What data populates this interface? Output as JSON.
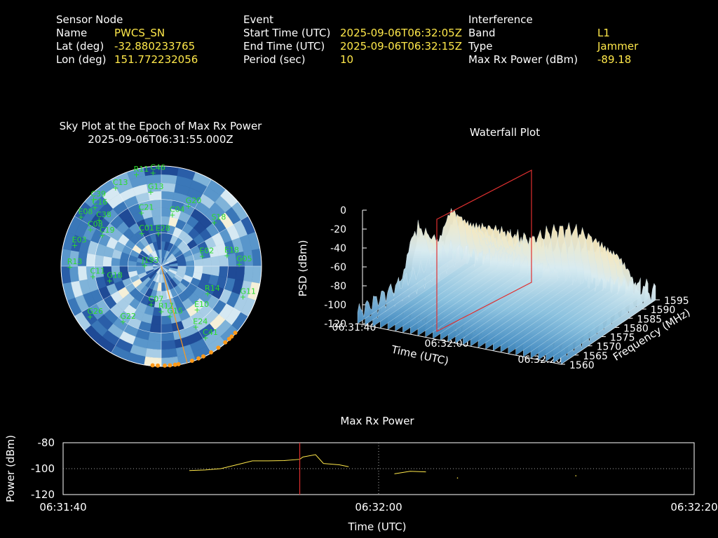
{
  "header": {
    "sensor": {
      "heading": "Sensor Node",
      "rows": [
        {
          "label": "Name",
          "value": "PWCS_SN"
        },
        {
          "label": "Lat (deg)",
          "value": "-32.880233765"
        },
        {
          "label": "Lon (deg)",
          "value": "151.772232056"
        }
      ]
    },
    "event": {
      "heading": "Event",
      "rows": [
        {
          "label": "Start Time (UTC)",
          "value": "2025-09-06T06:32:05Z"
        },
        {
          "label": "End Time (UTC)",
          "value": "2025-09-06T06:32:15Z"
        },
        {
          "label": "Period (sec)",
          "value": "10"
        }
      ]
    },
    "interference": {
      "heading": "Interference",
      "rows": [
        {
          "label": "Band",
          "value": "L1"
        },
        {
          "label": "Type",
          "value": "Jammer"
        },
        {
          "label": "Max Rx Power (dBm)",
          "value": "-89.18"
        }
      ]
    }
  },
  "chart_data": [
    {
      "type": "scatter",
      "name": "sky-plot",
      "title": "Sky Plot at the Epoch of Max Rx Power",
      "subtitle": "2025-09-06T06:31:55.000Z",
      "colors": {
        "satellite": "#2bdc2b",
        "jammer": "#ff9a1a"
      },
      "satellites": [
        {
          "id": "C46",
          "az": 355,
          "el": 5
        },
        {
          "id": "R11",
          "az": 345,
          "el": 4
        },
        {
          "id": "C13",
          "az": 330,
          "el": 8
        },
        {
          "id": "C39",
          "az": 315,
          "el": 4
        },
        {
          "id": "C16",
          "az": 312,
          "el": 10
        },
        {
          "id": "E08",
          "az": 302,
          "el": 5
        },
        {
          "id": "C38",
          "az": 307,
          "el": 20
        },
        {
          "id": "C08",
          "az": 298,
          "el": 18
        },
        {
          "id": "G13",
          "az": 352,
          "el": 22
        },
        {
          "id": "G20",
          "az": 24,
          "el": 30
        },
        {
          "id": "C21",
          "az": 340,
          "el": 38
        },
        {
          "id": "C04",
          "az": 12,
          "el": 42
        },
        {
          "id": "S18",
          "az": 50,
          "el": 28
        },
        {
          "id": "C19",
          "az": 298,
          "el": 30
        },
        {
          "id": "E03",
          "az": 284,
          "el": 10
        },
        {
          "id": "C01",
          "az": 330,
          "el": 55
        },
        {
          "id": "E28",
          "az": 355,
          "el": 60
        },
        {
          "id": "E02",
          "az": 75,
          "el": 52
        },
        {
          "id": "E18",
          "az": 80,
          "el": 30
        },
        {
          "id": "G05",
          "az": 88,
          "el": 20
        },
        {
          "id": "R13",
          "az": 270,
          "el": 8
        },
        {
          "id": "C11",
          "az": 262,
          "el": 28
        },
        {
          "id": "G18",
          "az": 255,
          "el": 42
        },
        {
          "id": "J193",
          "az": 275,
          "el": 75
        },
        {
          "id": "G26",
          "az": 235,
          "el": 12
        },
        {
          "id": "G15",
          "az": 170,
          "el": 45
        },
        {
          "id": "R14",
          "az": 120,
          "el": 42
        },
        {
          "id": "G11",
          "az": 110,
          "el": 12
        },
        {
          "id": "E10",
          "az": 140,
          "el": 40
        },
        {
          "id": "E24",
          "az": 150,
          "el": 28
        },
        {
          "id": "C41",
          "az": 148,
          "el": 15
        },
        {
          "id": "R17",
          "az": 180,
          "el": 50
        },
        {
          "id": "C07",
          "az": 195,
          "el": 55
        },
        {
          "id": "G22",
          "az": 215,
          "el": 30
        }
      ],
      "jammer_bearing_deg": 165,
      "jammer_az": [
        170,
        172,
        175,
        178,
        182,
        185,
        150,
        155,
        158,
        162,
        145,
        140,
        137,
        135,
        132
      ]
    },
    {
      "type": "heatmap",
      "name": "waterfall-plot",
      "title": "Waterfall Plot",
      "zlabel": "PSD (dBm)",
      "xlabel": "Time (UTC)",
      "ylabel": "Frequency (MHz)",
      "z_ticks": [
        "0",
        "-20",
        "-40",
        "-60",
        "-80",
        "-100",
        "-120"
      ],
      "zlim": [
        -120,
        0
      ],
      "time_ticks": [
        "06:31:40",
        "06:32:00",
        "06:32:20"
      ],
      "freq_ticks": [
        "1560",
        "1565",
        "1570",
        "1575",
        "1580",
        "1585",
        "1590",
        "1595"
      ],
      "ylim": [
        1560,
        1595
      ],
      "marker_time": "06:31:55",
      "marker_color": "#e03030",
      "surface_peak_dbm": -8,
      "surface_floor_dbm": -115
    },
    {
      "type": "line",
      "name": "max-rx-power",
      "title": "Max Rx Power",
      "xlabel": "Time (UTC)",
      "ylabel": "Power (dBm)",
      "xlim_sec": [
        0,
        40
      ],
      "ylim": [
        -120,
        -80
      ],
      "x_ticks": [
        "06:31:40",
        "06:32:00",
        "06:32:20"
      ],
      "y_ticks": [
        "-80",
        "-100",
        "-120"
      ],
      "line_color": "#ffe84a",
      "marker_time_sec": 15,
      "marker_color": "#e03030",
      "segments": [
        [
          [
            8,
            -101.5
          ],
          [
            9,
            -101
          ],
          [
            10,
            -100
          ],
          [
            11,
            -97
          ],
          [
            12,
            -94
          ],
          [
            13,
            -94
          ],
          [
            14,
            -93.8
          ],
          [
            15,
            -92.8
          ],
          [
            15.2,
            -91
          ],
          [
            16,
            -89.2
          ],
          [
            16.5,
            -96
          ],
          [
            17.5,
            -97
          ],
          [
            18.1,
            -98.5
          ]
        ],
        [
          [
            21,
            -104
          ],
          [
            22,
            -102
          ],
          [
            23,
            -102.5
          ]
        ],
        [
          [
            25,
            -107.2
          ]
        ],
        [
          [
            32.5,
            -105.5
          ]
        ]
      ]
    }
  ]
}
